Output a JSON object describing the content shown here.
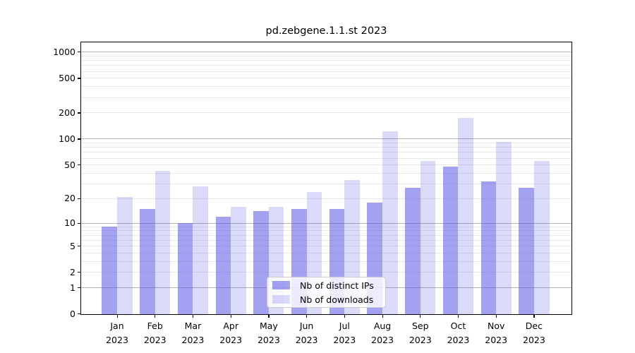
{
  "chart_data": {
    "type": "bar",
    "title": "pd.zebgene.1.1.st 2023",
    "categories": [
      "Jan 2023",
      "Feb 2023",
      "Mar 2023",
      "Apr 2023",
      "May 2023",
      "Jun 2023",
      "Jul 2023",
      "Aug 2023",
      "Sep 2023",
      "Oct 2023",
      "Nov 2023",
      "Dec 2023"
    ],
    "series": [
      {
        "name": "Nb of distinct IPs",
        "color": "#5555e4",
        "alpha": 0.55,
        "values": [
          9,
          15,
          10,
          12,
          14,
          15,
          15,
          18,
          27,
          48,
          32,
          27
        ]
      },
      {
        "name": "Nb of downloads",
        "color": "#5555e4",
        "alpha": 0.22,
        "values": [
          21,
          43,
          28,
          16,
          16,
          24,
          33,
          123,
          56,
          176,
          92,
          56
        ]
      }
    ],
    "xlabel": "",
    "ylabel": "",
    "yscale": "log10(1+v)",
    "ylim": [
      0,
      1320
    ],
    "yticks": [
      0,
      1,
      2,
      5,
      10,
      20,
      50,
      100,
      200,
      500,
      1000
    ],
    "grid": true,
    "legend_position": "lower center"
  },
  "colors": {
    "grid_major": "#b3b3b3",
    "grid_minor": "#e9e9e9",
    "spine": "#000000",
    "background": "#ffffff",
    "legend_border": "#cccccc"
  }
}
